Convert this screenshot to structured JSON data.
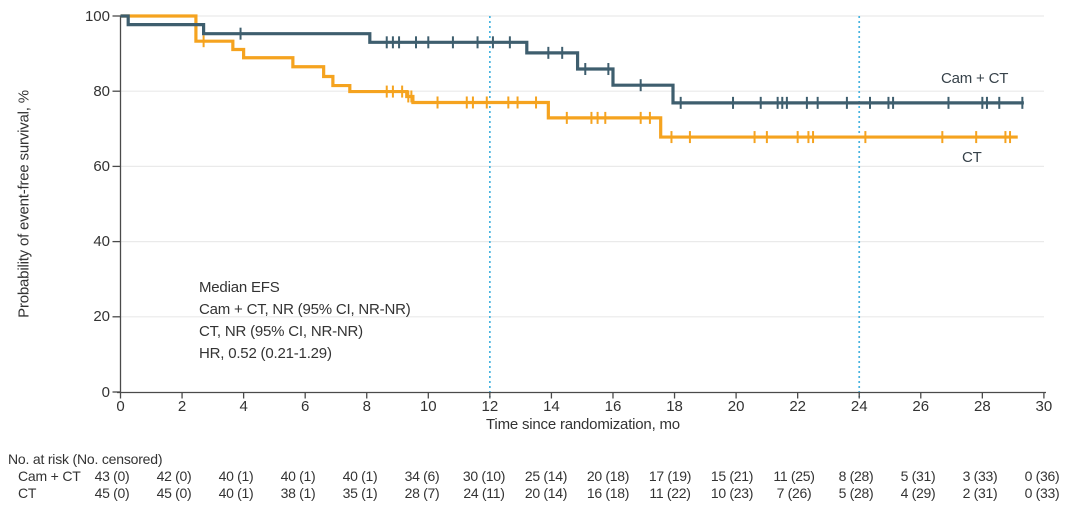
{
  "figure_title": "Event-free survival Kaplan-Meier plot",
  "colors": {
    "cam_ct_curve": "#3E5E6E",
    "ct_curve": "#F5A31F",
    "reference_line": "#47B3DF",
    "gridline": "#EAEAEA",
    "axis": "#4A4A4A",
    "text": "#333333"
  },
  "annotation": {
    "lines": [
      "Median EFS",
      "Cam + CT, NR (95% CI, NR-NR)",
      "CT, NR (95% CI, NR-NR)",
      "HR, 0.52 (0.21-1.29)"
    ]
  },
  "chart_data": {
    "type": "line",
    "subtype": "kaplan-meier-step",
    "title": "",
    "xlabel": "Time since randomization, mo",
    "ylabel": "Probability of event-free survival, %",
    "x_axis": {
      "min": 0,
      "max": 30,
      "ticks": [
        0,
        2,
        4,
        6,
        8,
        10,
        12,
        14,
        16,
        18,
        20,
        22,
        24,
        26,
        28,
        30
      ]
    },
    "y_axis": {
      "min": 0,
      "max": 100,
      "ticks": [
        0,
        20,
        40,
        60,
        80,
        100
      ]
    },
    "grid": "horizontal",
    "reference_lines_x_months": [
      12,
      24
    ],
    "series": [
      {
        "name": "Cam + CT",
        "color": "#3E5E6E",
        "steps_month_percent": [
          [
            0,
            100
          ],
          [
            0.25,
            97.7
          ],
          [
            2.7,
            95.3
          ],
          [
            8.1,
            93.0
          ],
          [
            13.2,
            90.2
          ],
          [
            14.85,
            85.9
          ],
          [
            16.0,
            81.6
          ],
          [
            17.95,
            76.9
          ]
        ],
        "end_month": 29.35,
        "censor_months": [
          3.9,
          8.65,
          8.85,
          9.05,
          9.6,
          10.0,
          10.8,
          11.6,
          12.1,
          12.65,
          13.9,
          14.35,
          15.1,
          15.85,
          16.9,
          18.2,
          19.9,
          20.8,
          21.35,
          21.5,
          21.65,
          22.3,
          22.65,
          23.6,
          24.35,
          24.95,
          25.1,
          26.9,
          28.0,
          28.15,
          28.55,
          29.3
        ]
      },
      {
        "name": "CT",
        "color": "#F5A31F",
        "steps_month_percent": [
          [
            0,
            100
          ],
          [
            2.45,
            93.3
          ],
          [
            3.65,
            91.1
          ],
          [
            4.0,
            88.9
          ],
          [
            5.6,
            86.5
          ],
          [
            6.6,
            83.9
          ],
          [
            6.9,
            81.5
          ],
          [
            7.45,
            79.9
          ],
          [
            9.3,
            78.6
          ],
          [
            9.5,
            77.0
          ],
          [
            13.9,
            72.9
          ],
          [
            17.55,
            67.8
          ]
        ],
        "end_month": 29.15,
        "censor_months": [
          2.7,
          8.65,
          8.85,
          9.15,
          9.35,
          9.45,
          10.3,
          11.25,
          11.45,
          11.9,
          12.6,
          12.9,
          13.5,
          14.5,
          15.3,
          15.5,
          15.75,
          16.9,
          17.2,
          17.9,
          18.5,
          20.6,
          21.0,
          22.0,
          22.35,
          22.5,
          24.2,
          26.7,
          27.8,
          28.75,
          28.9
        ]
      }
    ]
  },
  "risk_table": {
    "header": "No. at risk (No. censored)",
    "time_points": [
      0,
      2,
      4,
      6,
      8,
      10,
      12,
      14,
      16,
      18,
      20,
      22,
      24,
      26,
      28,
      30
    ],
    "rows": [
      {
        "label": "Cam + CT",
        "values": [
          "43 (0)",
          "42 (0)",
          "40 (1)",
          "40 (1)",
          "40 (1)",
          "34 (6)",
          "30 (10)",
          "25 (14)",
          "20 (18)",
          "17 (19)",
          "15 (21)",
          "11 (25)",
          "8 (28)",
          "5 (31)",
          "3 (33)",
          "0 (36)"
        ]
      },
      {
        "label": "CT",
        "values": [
          "45 (0)",
          "45 (0)",
          "40 (1)",
          "38 (1)",
          "35 (1)",
          "28 (7)",
          "24 (11)",
          "20 (14)",
          "16 (18)",
          "11 (22)",
          "10 (23)",
          "7 (26)",
          "5 (28)",
          "4 (29)",
          "2 (31)",
          "0 (33)"
        ]
      }
    ]
  }
}
